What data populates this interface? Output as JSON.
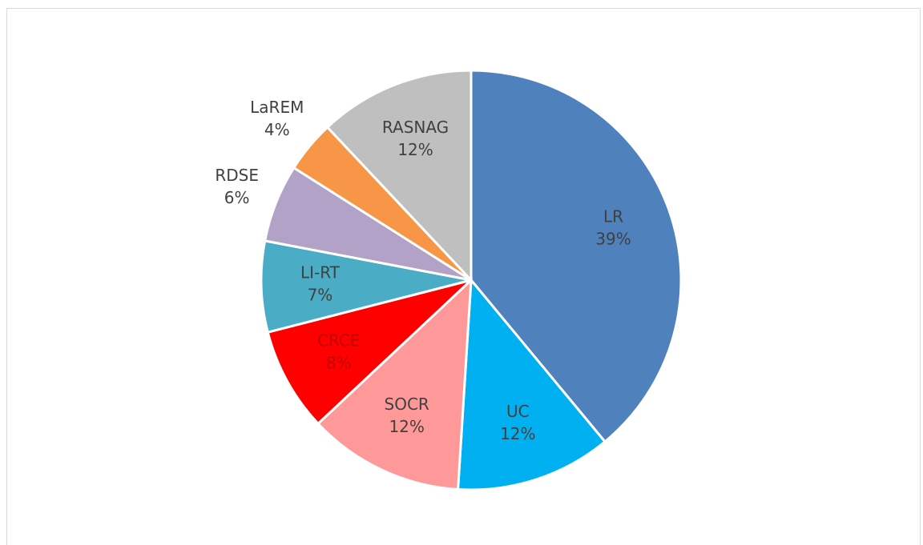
{
  "chart_data": {
    "type": "pie",
    "categories": [
      "LR",
      "UC",
      "SOCR",
      "CRCE",
      "LI-RT",
      "RDSE",
      "LaREM",
      "RASNAG"
    ],
    "values": [
      39,
      12,
      12,
      8,
      7,
      6,
      4,
      12
    ],
    "value_labels": [
      "39%",
      "12%",
      "12%",
      "8%",
      "7%",
      "6%",
      "4%",
      "12%"
    ],
    "colors": [
      "#4f81bd",
      "#00b0f0",
      "#ff9999",
      "#ff0000",
      "#4bacc6",
      "#b3a2c7",
      "#f79646",
      "#bfbfbf"
    ]
  }
}
